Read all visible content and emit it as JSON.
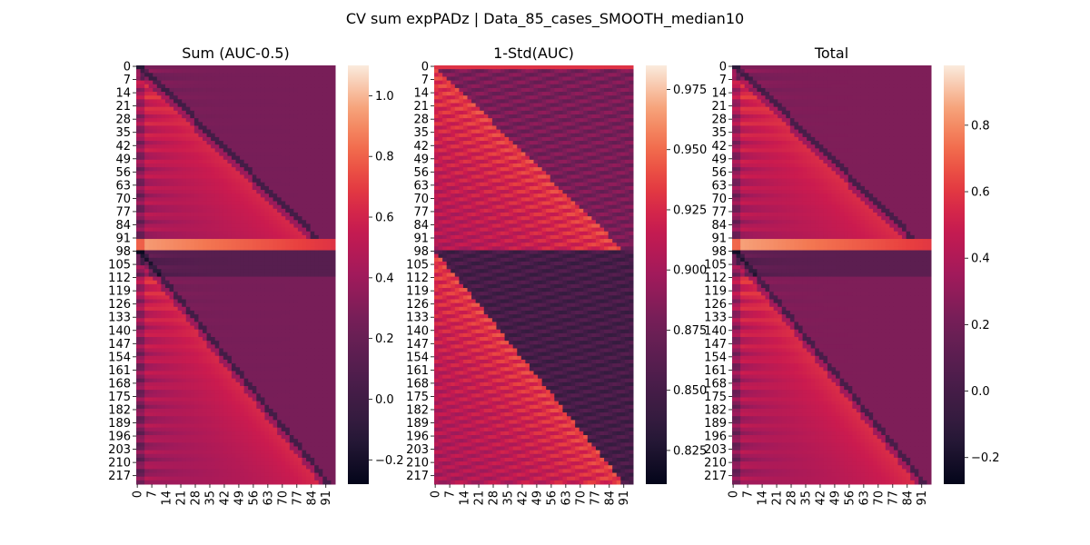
{
  "figure": {
    "suptitle": "CV sum expPADz | Data_85_cases_SMOOTH_median10"
  },
  "chart_data": [
    {
      "type": "heatmap",
      "title": "Sum (AUC-0.5)",
      "colormap": "rocket",
      "n_rows": 222,
      "n_cols": 96,
      "y_tick_labels": [
        "0",
        "7",
        "14",
        "21",
        "28",
        "35",
        "42",
        "49",
        "56",
        "63",
        "70",
        "77",
        "84",
        "91",
        "98",
        "105",
        "112",
        "119",
        "126",
        "133",
        "140",
        "147",
        "154",
        "161",
        "168",
        "175",
        "182",
        "189",
        "196",
        "203",
        "210",
        "217"
      ],
      "x_tick_labels": [
        "0",
        "7",
        "14",
        "21",
        "28",
        "35",
        "42",
        "49",
        "56",
        "63",
        "70",
        "77",
        "84",
        "91"
      ],
      "colorbar_range": [
        -0.28,
        1.1
      ],
      "colorbar_ticks": [
        "−0.2",
        "0.0",
        "0.2",
        "0.4",
        "0.6",
        "0.8",
        "1.0"
      ],
      "colorbar_tick_values": [
        -0.2,
        0.0,
        0.2,
        0.4,
        0.6,
        0.8,
        1.0
      ]
    },
    {
      "type": "heatmap",
      "title": "1-Std(AUC)",
      "colormap": "rocket",
      "n_rows": 222,
      "n_cols": 96,
      "y_tick_labels": [
        "0",
        "7",
        "14",
        "21",
        "28",
        "35",
        "42",
        "49",
        "56",
        "63",
        "70",
        "77",
        "84",
        "91",
        "98",
        "105",
        "112",
        "119",
        "126",
        "133",
        "140",
        "147",
        "154",
        "161",
        "168",
        "175",
        "182",
        "189",
        "196",
        "203",
        "210",
        "217"
      ],
      "x_tick_labels": [
        "0",
        "7",
        "14",
        "21",
        "28",
        "35",
        "42",
        "49",
        "56",
        "63",
        "70",
        "77",
        "84",
        "91"
      ],
      "colorbar_range": [
        0.811,
        0.985
      ],
      "colorbar_ticks": [
        "0.825",
        "0.850",
        "0.875",
        "0.900",
        "0.925",
        "0.950",
        "0.975"
      ],
      "colorbar_tick_values": [
        0.825,
        0.85,
        0.875,
        0.9,
        0.925,
        0.95,
        0.975
      ]
    },
    {
      "type": "heatmap",
      "title": "Total",
      "colormap": "rocket",
      "n_rows": 222,
      "n_cols": 96,
      "y_tick_labels": [
        "0",
        "7",
        "14",
        "21",
        "28",
        "35",
        "42",
        "49",
        "56",
        "63",
        "70",
        "77",
        "84",
        "91",
        "98",
        "105",
        "112",
        "119",
        "126",
        "133",
        "140",
        "147",
        "154",
        "161",
        "168",
        "175",
        "182",
        "189",
        "196",
        "203",
        "210",
        "217"
      ],
      "x_tick_labels": [
        "0",
        "7",
        "14",
        "21",
        "28",
        "35",
        "42",
        "49",
        "56",
        "63",
        "70",
        "77",
        "84",
        "91"
      ],
      "colorbar_range": [
        -0.28,
        0.98
      ],
      "colorbar_ticks": [
        "−0.2",
        "0.0",
        "0.2",
        "0.4",
        "0.6",
        "0.8"
      ],
      "colorbar_tick_values": [
        -0.2,
        0.0,
        0.2,
        0.4,
        0.6,
        0.8
      ]
    }
  ]
}
